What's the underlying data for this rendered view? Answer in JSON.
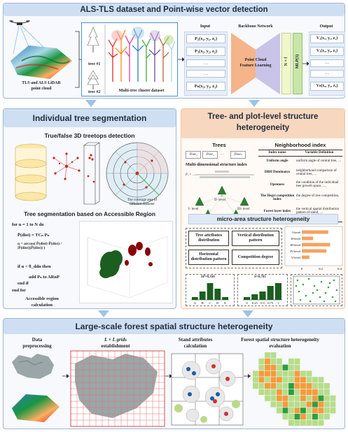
{
  "top": {
    "title": "ALS-TLS dataset and Point-wise vector detection",
    "pointcloud_label_1": "TLS and ALS LiDAR",
    "pointcloud_label_2": "point cloud",
    "tree1": "tree #1",
    "tree2": "tree #2",
    "multitree": "Multi-tree cluster dataset",
    "input_label": "Input",
    "backbone_label": "Backbone Network",
    "output_label": "Output",
    "feature_1": "Point Cloud",
    "feature_2": "Feature Learning",
    "nxf": "N × f",
    "mlp": "MLP(3)",
    "inputs": [
      "P₁(x₁, y₁, z₁)",
      "P₂(x₂, y₂, z₂)",
      "…",
      "…",
      "Pₙ(x₃, y₃, z₃)"
    ],
    "outputs": [
      "V₁(x₁, y₁, z₁)",
      "V₂(x₂, y₂, z₂)",
      "…",
      "…",
      "Vₙ(x₃, y₃, z₃)"
    ]
  },
  "left": {
    "title": "Individual tree segmentation",
    "sub1": "True/false 3D treetops detection",
    "sub2": "Tree segmentation based on Accessible Region",
    "coverage_1": "The coverage area of",
    "coverage_2": "different diameter",
    "algo": [
      "for n = 1 to N do",
      "P̄(dist) = TCₙ Pₙ",
      "α = arccos( P̄(dist)·P̄(dist) / |P̄(dist)||P̄(dist)| )",
      "if α < θ_ddn then",
      "add Pₙ to ARnP",
      "end if",
      "end for"
    ],
    "accessible_1": "Accessible region",
    "accessible_2": "calculation"
  },
  "right": {
    "title_1": "Tree- and plot-level structure",
    "title_2": "heterogeneity",
    "trees_label": "Trees",
    "tree_boxes": [
      "Tree₁",
      "Tree₂",
      "…",
      "Treeₙ"
    ],
    "neigh_label": "Neighborhood index",
    "multi_label": "Multi-dimensional structure index",
    "formula": "Fᵢ = …",
    "neigh_header": [
      "Index name",
      "Variable Definition"
    ],
    "neigh_rows": [
      [
        "Uniform angle",
        "uniform angle of central tree, …"
      ],
      [
        "DBH Dominance",
        "neighborhood comparison of central tree, …"
      ],
      [
        "Openness",
        "the condition of the individual tree growth space, …"
      ],
      [
        "The Hegyi competition index",
        "the degree of tree competition, …"
      ],
      [
        "Forest layer index",
        "the vertical spatial distribution pattern of stand, …"
      ]
    ],
    "levels": [
      "I- level",
      "II- level",
      "III- level",
      "IV- level",
      "V- level"
    ],
    "micro_title": "micro-area structure heterogeneity",
    "micro_boxes": [
      "Tree attributes distribution",
      "Vertical distribution pattern",
      "Horizontal distribution pattern",
      "Competition degree"
    ],
    "bar_labels": [
      "I-level",
      "II-level",
      "III-level",
      "IV-level",
      "V-level"
    ],
    "bar_values": [
      0.28,
      0.12,
      0.3,
      0.26,
      0.08
    ],
    "bar_ticks": [
      "0",
      "0.2",
      "0.4"
    ],
    "mini1_stat": "SP=0.336",
    "mini1_x": [
      "A",
      "B",
      "C",
      "D",
      "E"
    ],
    "mini1_values": [
      1,
      3,
      6,
      4,
      1
    ],
    "mini2_stat": "S=0.705",
    "mini2_x": [
      "0",
      "0.25",
      "0.5",
      "0.75",
      "1"
    ],
    "mini2_values": [
      1,
      2,
      3,
      5,
      6
    ]
  },
  "bottom": {
    "title": "Large-scale forest spatial structure heterogeneity",
    "step1_1": "Data",
    "step1_2": "preprocessing",
    "step2_1": "L × L grids",
    "step2_2": "establishment",
    "step3_1": "Stand attributes",
    "step3_2": "calculation",
    "step4_1": "Forest spatial structure heterogeneity",
    "step4_2": "evaluation"
  },
  "colors": {
    "title_band": "#cfdff2",
    "orange_band": "#f8d7bf",
    "arrow": "#9dc3e6",
    "backbone": "#f5b48a",
    "backbone2": "#c9c3e8",
    "nxf": "#f1f7c9",
    "mlp": "#c8e6a6"
  }
}
